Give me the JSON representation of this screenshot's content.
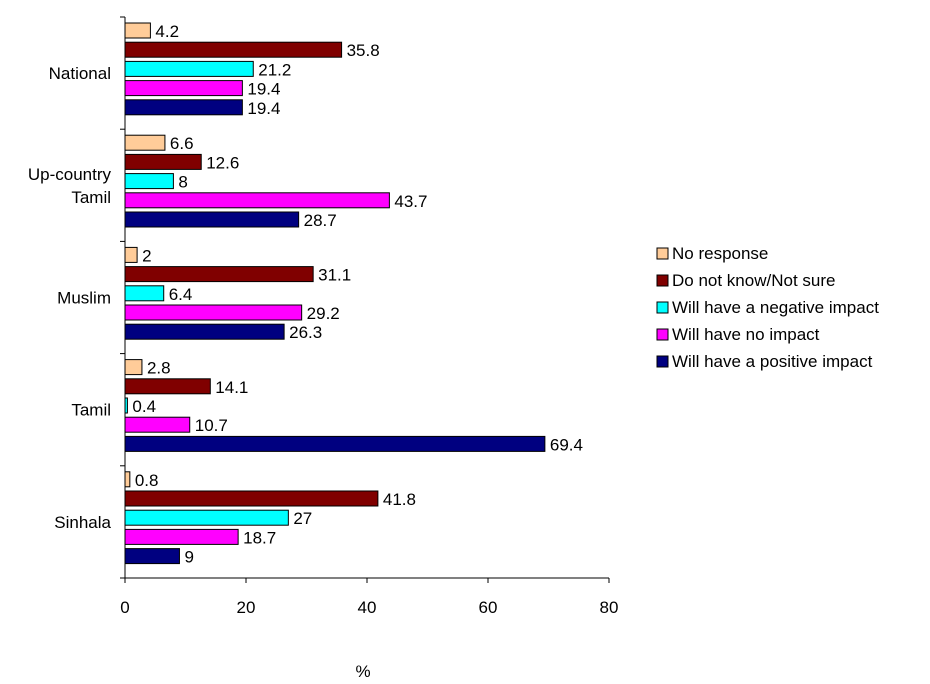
{
  "chart_data": {
    "type": "bar",
    "orientation": "horizontal",
    "categories": [
      "National",
      "Up-country Tamil",
      "Muslim",
      "Tamil",
      "Sinhala"
    ],
    "category_lines": [
      [
        "National"
      ],
      [
        "Up-country",
        "Tamil"
      ],
      [
        "Muslim"
      ],
      [
        "Tamil"
      ],
      [
        "Sinhala"
      ]
    ],
    "series": [
      {
        "name": "No response",
        "color": "#FFCC99",
        "values": [
          4.2,
          6.6,
          2,
          2.8,
          0.8
        ]
      },
      {
        "name": "Do not know/Not sure",
        "color": "#800000",
        "values": [
          35.8,
          12.6,
          31.1,
          14.1,
          41.8
        ]
      },
      {
        "name": "Will have a negative impact",
        "color": "#00FFFF",
        "values": [
          21.2,
          8,
          6.4,
          0.4,
          27
        ]
      },
      {
        "name": "Will have no impact",
        "color": "#FF00FF",
        "values": [
          19.4,
          43.7,
          29.2,
          10.7,
          18.7
        ]
      },
      {
        "name": "Will have a positive impact",
        "color": "#000080",
        "values": [
          19.4,
          28.7,
          26.3,
          69.4,
          9
        ]
      }
    ],
    "xlabel": "%",
    "xlim": [
      0,
      80
    ],
    "xticks": [
      0,
      20,
      40,
      60,
      80
    ],
    "grid": false,
    "legend_position": "right"
  }
}
